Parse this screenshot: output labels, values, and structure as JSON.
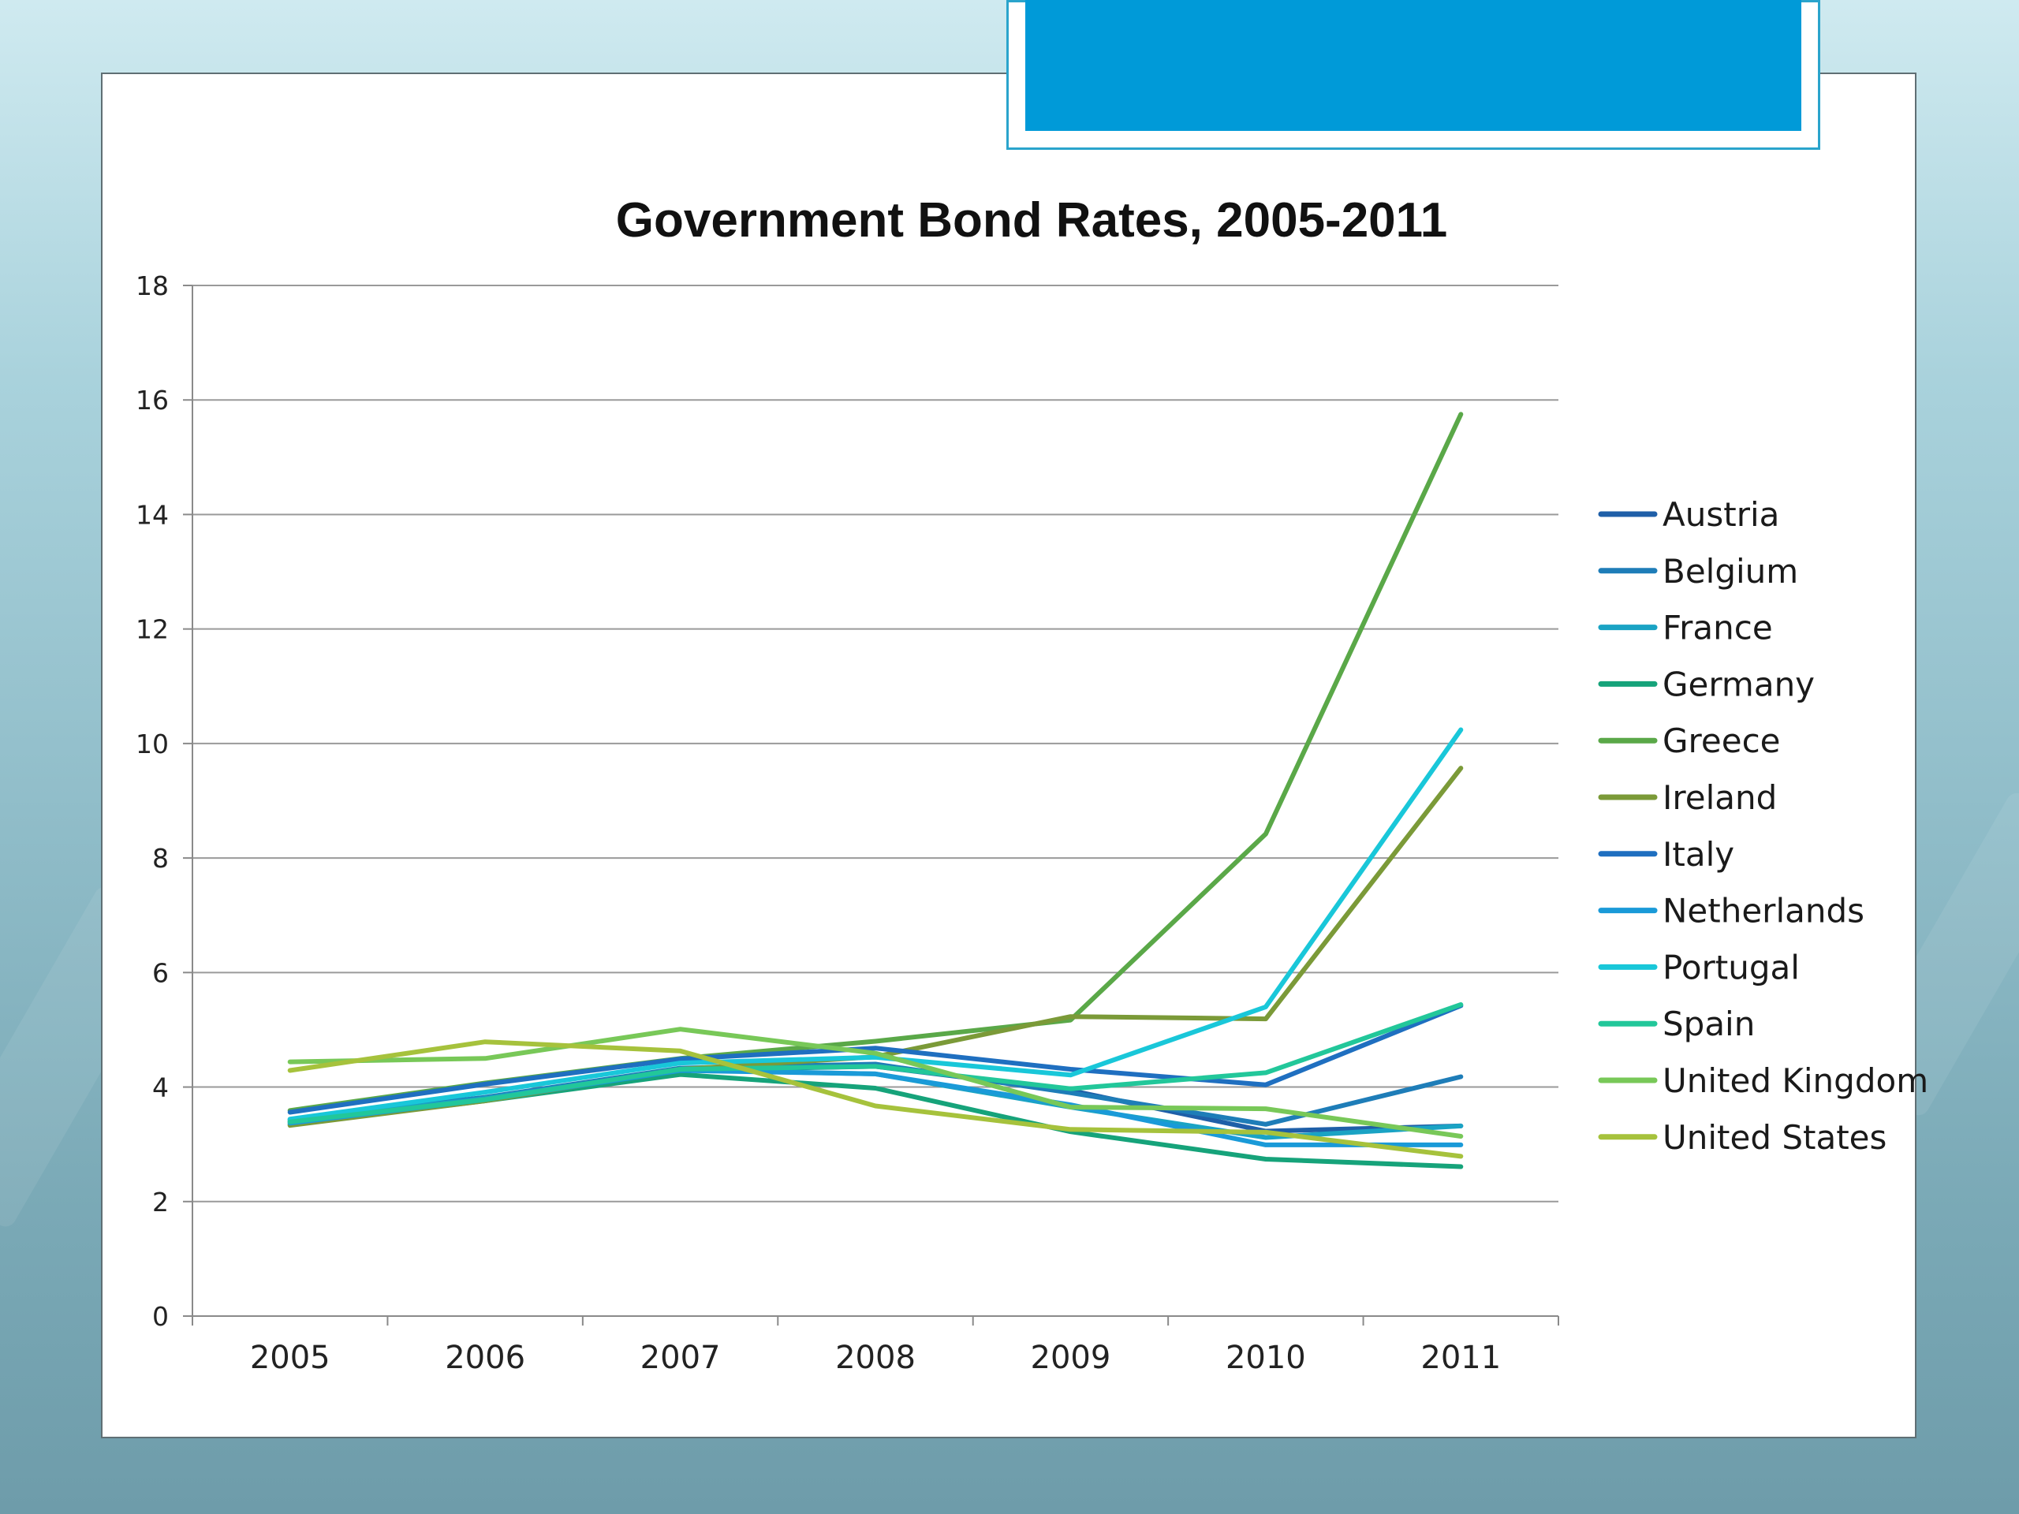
{
  "slide": {
    "background_color": "#a9d2dc",
    "banner_color": "#009ad8"
  },
  "chart_data": {
    "type": "line",
    "title": "Government Bond Rates, 2005-2011",
    "xlabel": "",
    "ylabel": "",
    "categories": [
      "2005",
      "2006",
      "2007",
      "2008",
      "2009",
      "2010",
      "2011"
    ],
    "ylim": [
      0,
      18
    ],
    "yticks": [
      "0",
      "2",
      "4",
      "6",
      "8",
      "10",
      "12",
      "14",
      "16",
      "18"
    ],
    "grid": true,
    "legend_position": "right",
    "series": [
      {
        "name": "Austria",
        "color": "#1f5fa8",
        "values": [
          3.39,
          3.8,
          4.3,
          4.36,
          3.94,
          3.23,
          3.32
        ]
      },
      {
        "name": "Belgium",
        "color": "#1e7db8",
        "values": [
          3.43,
          3.82,
          4.33,
          4.4,
          3.9,
          3.35,
          4.18
        ]
      },
      {
        "name": "France",
        "color": "#1aa3c4",
        "values": [
          3.41,
          3.8,
          4.3,
          4.23,
          3.65,
          3.12,
          3.32
        ]
      },
      {
        "name": "Germany",
        "color": "#16a37a",
        "values": [
          3.35,
          3.76,
          4.22,
          3.98,
          3.22,
          2.74,
          2.61
        ]
      },
      {
        "name": "Greece",
        "color": "#5aa848",
        "values": [
          3.59,
          4.07,
          4.5,
          4.8,
          5.17,
          8.42,
          15.75
        ]
      },
      {
        "name": "Ireland",
        "color": "#7b9a38",
        "values": [
          3.33,
          3.76,
          4.31,
          4.53,
          5.23,
          5.19,
          9.57
        ]
      },
      {
        "name": "Italy",
        "color": "#1f6fc0",
        "values": [
          3.56,
          4.05,
          4.49,
          4.68,
          4.31,
          4.04,
          5.42
        ]
      },
      {
        "name": "Netherlands",
        "color": "#1a9ad8",
        "values": [
          3.37,
          3.78,
          4.29,
          4.23,
          3.69,
          2.99,
          2.99
        ]
      },
      {
        "name": "Portugal",
        "color": "#19c7d9",
        "values": [
          3.44,
          3.91,
          4.42,
          4.52,
          4.21,
          5.4,
          10.24
        ]
      },
      {
        "name": "Spain",
        "color": "#22c79a",
        "values": [
          3.39,
          3.78,
          4.31,
          4.36,
          3.97,
          4.25,
          5.44
        ]
      },
      {
        "name": "United Kingdom",
        "color": "#78c858",
        "values": [
          4.44,
          4.5,
          5.01,
          4.59,
          3.65,
          3.62,
          3.14
        ]
      },
      {
        "name": "United States",
        "color": "#a6c23c",
        "values": [
          4.29,
          4.79,
          4.63,
          3.67,
          3.26,
          3.21,
          2.79
        ]
      }
    ]
  }
}
